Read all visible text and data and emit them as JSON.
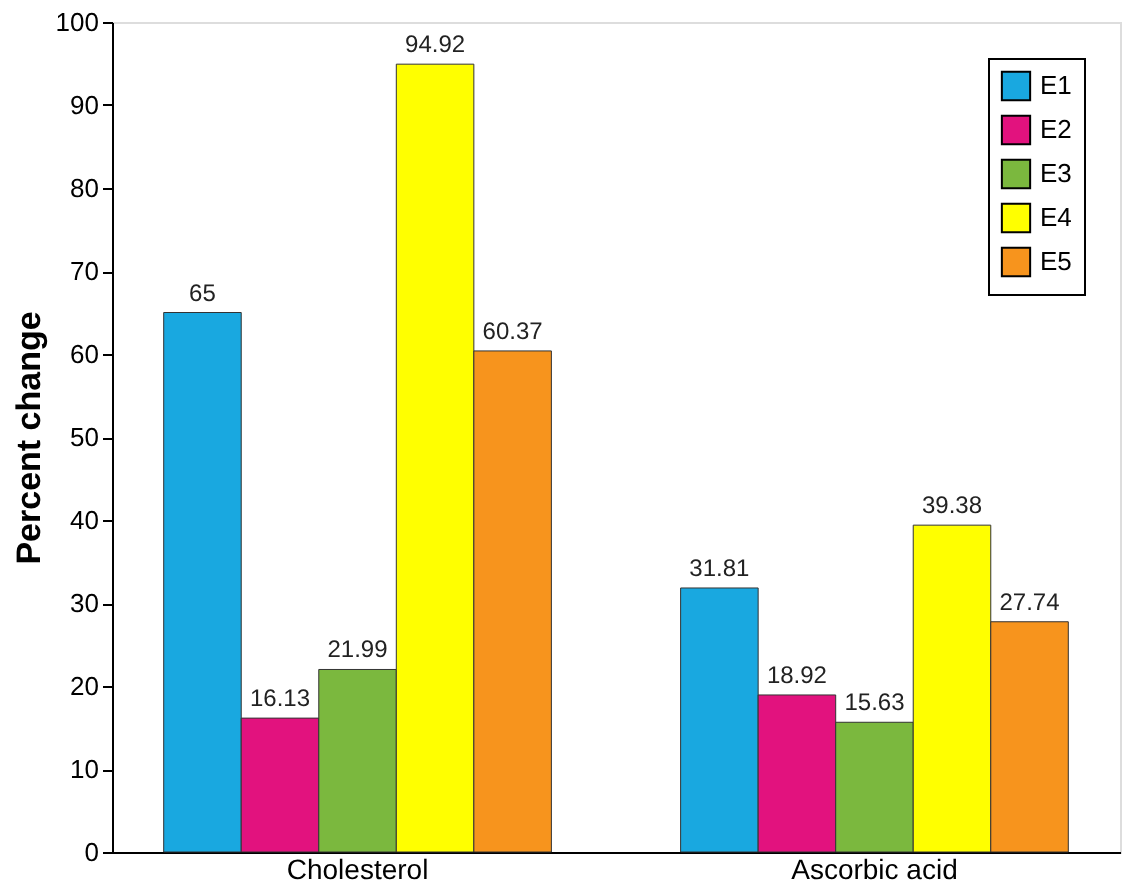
{
  "chart_data": {
    "type": "bar",
    "ylabel": "Percent change",
    "categories": [
      "Cholesterol",
      "Ascorbic acid"
    ],
    "series": [
      {
        "name": "E1",
        "color": "#19a8e0",
        "values": [
          65,
          31.81
        ]
      },
      {
        "name": "E2",
        "color": "#e2127e",
        "values": [
          16.13,
          18.92
        ]
      },
      {
        "name": "E3",
        "color": "#7bb83e",
        "values": [
          21.99,
          15.63
        ]
      },
      {
        "name": "E4",
        "color": "#ffff00",
        "values": [
          94.92,
          39.38
        ]
      },
      {
        "name": "E5",
        "color": "#f7941d",
        "values": [
          60.37,
          27.74
        ]
      }
    ],
    "ylim": [
      0,
      100
    ],
    "yticks": [
      0,
      10,
      20,
      30,
      40,
      50,
      60,
      70,
      80,
      90,
      100
    ],
    "grid": false,
    "legend": "top right",
    "data_labels": true
  }
}
